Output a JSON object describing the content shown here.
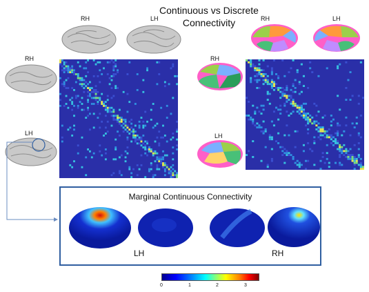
{
  "title": "Continuous vs Discrete Connectivity",
  "labels": {
    "rh_top_left": "RH",
    "lh_top_left": "LH",
    "rh_side_left": "RH",
    "lh_side_left": "LH",
    "rh_top_right": "RH",
    "lh_top_right": "LH",
    "rh_side_right": "RH",
    "lh_side_right": "LH"
  },
  "panel": {
    "title": "Marginal Continuous Connectivity",
    "lh": "LH",
    "rh": "RH"
  },
  "colorbar": {
    "ticks": [
      "0",
      "1",
      "2",
      "3"
    ]
  },
  "colors": {
    "matrix_bg": "#2a2fa8",
    "panel_border": "#2f5ea0",
    "arrow": "#6a8cc0"
  }
}
